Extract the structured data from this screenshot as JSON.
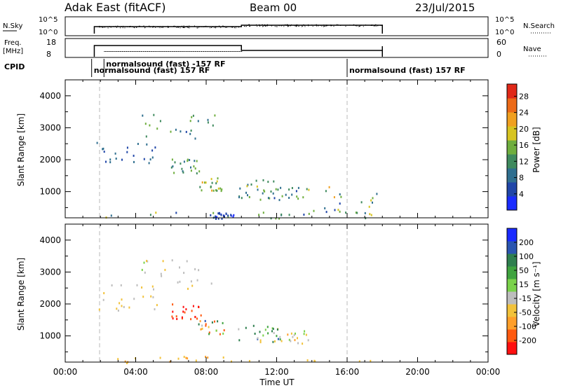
{
  "header": {
    "title": "Adak East (fitACF)",
    "beam": "Beam 00",
    "date": "23/Jul/2015"
  },
  "strips": {
    "nsky_label": "N.Sky",
    "nsky_ticks": [
      "10^5",
      "10^0"
    ],
    "nsearch_label": "N.Search",
    "nsearch_ticks": [
      "10^5",
      "10^0"
    ],
    "freq_label_line1": "Freq.",
    "freq_label_line2": "[MHz]",
    "freq_ticks": [
      "18",
      "8"
    ],
    "nave_label": "Nave",
    "nave_ticks": [
      "60",
      "0"
    ],
    "cpid_label": "CPID",
    "cpid_entries": [
      {
        "text": "normalsound (fast) -157 RF",
        "time": 2.2
      },
      {
        "text": "normalsound (fast) 157 RF",
        "time": 1.5
      },
      {
        "text": "normalsound (fast) 157 RF",
        "time": 16.0
      }
    ]
  },
  "colors": {
    "power_scale": [
      "#1a2cff",
      "#2046a8",
      "#2f6f8f",
      "#3f8a5e",
      "#6fae3e",
      "#d7c421",
      "#f0a020",
      "#ec6a18",
      "#e02818"
    ],
    "velocity_scale": [
      "#ff1010",
      "#ff5a10",
      "#ff9f2a",
      "#f2c23a",
      "#bdbdbd",
      "#7ad24a",
      "#3fa33f",
      "#2f7f4f",
      "#2a55b0",
      "#1a2aff"
    ]
  },
  "chart_data": [
    {
      "type": "heatmap",
      "name": "power",
      "xlabel": "",
      "ylabel": "Slant Range [km]",
      "xlim": [
        0,
        24
      ],
      "ylim": [
        180,
        4500
      ],
      "yticks": [
        1000,
        2000,
        3000,
        4000
      ],
      "colorbar_label": "Power [dB]",
      "colorbar_ticks": [
        "4",
        "8",
        "12",
        "16",
        "20",
        "24",
        "28"
      ],
      "colorbar_range": [
        0,
        31
      ],
      "scatter_regions": [
        {
          "t": [
            1.7,
            5.3
          ],
          "r": [
            1800,
            2650
          ],
          "v": [
            4,
            10
          ]
        },
        {
          "t": [
            4.3,
            8.5
          ],
          "r": [
            2500,
            3450
          ],
          "v": [
            6,
            16
          ]
        },
        {
          "t": [
            6.0,
            7.7
          ],
          "r": [
            1550,
            2050
          ],
          "v": [
            8,
            18
          ]
        },
        {
          "t": [
            7.5,
            9.0
          ],
          "r": [
            1050,
            1500
          ],
          "v": [
            10,
            22
          ]
        },
        {
          "t": [
            9.8,
            12.3
          ],
          "r": [
            820,
            1400
          ],
          "v": [
            8,
            20
          ]
        },
        {
          "t": [
            11.0,
            13.8
          ],
          "r": [
            760,
            1180
          ],
          "v": [
            6,
            18
          ]
        },
        {
          "t": [
            1.7,
            18.0
          ],
          "r": [
            180,
            380
          ],
          "v": [
            4,
            20
          ]
        },
        {
          "t": [
            8.2,
            9.6
          ],
          "r": [
            180,
            380
          ],
          "v": [
            2,
            6
          ]
        },
        {
          "t": [
            13.8,
            17.8
          ],
          "r": [
            300,
            1200
          ],
          "v": [
            4,
            22
          ]
        }
      ]
    },
    {
      "type": "heatmap",
      "name": "velocity",
      "xlabel": "Time UT",
      "ylabel": "Slant Range [km]",
      "xlim": [
        0,
        24
      ],
      "ylim": [
        180,
        4500
      ],
      "xticks": [
        "00:00",
        "04:00",
        "08:00",
        "12:00",
        "16:00",
        "20:00",
        "00:00"
      ],
      "yticks": [
        1000,
        2000,
        3000,
        4000
      ],
      "colorbar_label": "Velocity [m s⁻¹]",
      "colorbar_ticks": [
        "-200",
        "-100",
        "-50",
        "-15",
        "15",
        "50",
        "100",
        "200"
      ],
      "scatter_regions": [
        {
          "t": [
            1.7,
            5.3
          ],
          "r": [
            1800,
            2650
          ],
          "v": [
            -40,
            10
          ]
        },
        {
          "t": [
            4.3,
            8.5
          ],
          "r": [
            2500,
            3450
          ],
          "v": [
            -30,
            20
          ]
        },
        {
          "t": [
            6.0,
            7.7
          ],
          "r": [
            1550,
            2050
          ],
          "v": [
            -250,
            -120
          ]
        },
        {
          "t": [
            7.5,
            9.0
          ],
          "r": [
            1050,
            1500
          ],
          "v": [
            -220,
            220
          ]
        },
        {
          "t": [
            9.8,
            12.3
          ],
          "r": [
            820,
            1400
          ],
          "v": [
            -60,
            220
          ]
        },
        {
          "t": [
            11.0,
            13.8
          ],
          "r": [
            760,
            1180
          ],
          "v": [
            -60,
            60
          ]
        },
        {
          "t": [
            1.7,
            18.0
          ],
          "r": [
            180,
            380
          ],
          "v": [
            -60,
            -20
          ]
        }
      ]
    }
  ]
}
